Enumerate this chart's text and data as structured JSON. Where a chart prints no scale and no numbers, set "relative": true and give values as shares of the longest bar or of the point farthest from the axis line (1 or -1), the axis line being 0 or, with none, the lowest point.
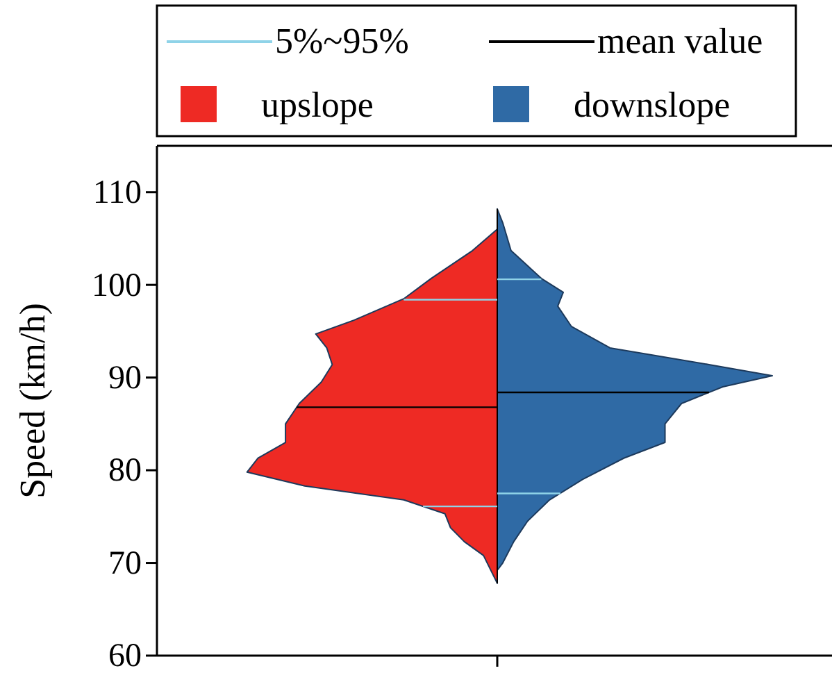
{
  "chart_data": {
    "type": "area",
    "orientation": "horizontal",
    "ylabel": "Speed (km/h)",
    "ylim": [
      60,
      115
    ],
    "yticks": [
      60,
      70,
      80,
      90,
      100,
      110
    ],
    "relative": true,
    "ref_lines": [
      {
        "axis": "x",
        "value": 0,
        "color": "#000000"
      }
    ],
    "legend": "top",
    "series": [
      {
        "name": "upslope",
        "type": "area",
        "color": "#ee2a24",
        "x": [
          106,
          103.7,
          100.7,
          98.5,
          96.2,
          94.7,
          93.2,
          91.4,
          89.5,
          87.2,
          85,
          83,
          81.3,
          79.8,
          78.3,
          76.8,
          75.3,
          73.8,
          72.3,
          70.8,
          69,
          67.8
        ],
        "values": [
          0,
          -0.09,
          -0.24,
          -0.34,
          -0.52,
          -0.66,
          -0.62,
          -0.6,
          -0.64,
          -0.72,
          -0.77,
          -0.77,
          -0.87,
          -0.91,
          -0.7,
          -0.34,
          -0.19,
          -0.17,
          -0.12,
          -0.05,
          -0.02,
          0
        ]
      },
      {
        "name": "downslope",
        "type": "area",
        "color": "#2f6aa5",
        "x": [
          108.2,
          106.7,
          103.7,
          100.7,
          99.2,
          97.7,
          95.5,
          93.2,
          91.4,
          90.2,
          89,
          87.2,
          85,
          83,
          81.3,
          79,
          76.8,
          74.5,
          72.3,
          70,
          69.2
        ],
        "values": [
          0,
          0.02,
          0.05,
          0.16,
          0.24,
          0.22,
          0.27,
          0.41,
          0.77,
          1,
          0.82,
          0.67,
          0.61,
          0.61,
          0.46,
          0.31,
          0.19,
          0.11,
          0.06,
          0.02,
          0
        ]
      },
      {
        "name": "5%~95%",
        "type": "line",
        "color": "#8fd3e8",
        "x": [
          98.4,
          98.4,
          null,
          76.1,
          76.1,
          null,
          100.6,
          100.6,
          null,
          77.5,
          77.5
        ],
        "values": [
          0,
          -0.34,
          null,
          0,
          -0.27,
          null,
          0,
          0.16,
          null,
          0,
          0.23
        ]
      },
      {
        "name": "mean value",
        "type": "line",
        "color": "#000000",
        "x": [
          86.8,
          86.8,
          null,
          88.4,
          88.4
        ],
        "values": [
          0,
          -0.73,
          null,
          0,
          0.77
        ]
      }
    ]
  }
}
